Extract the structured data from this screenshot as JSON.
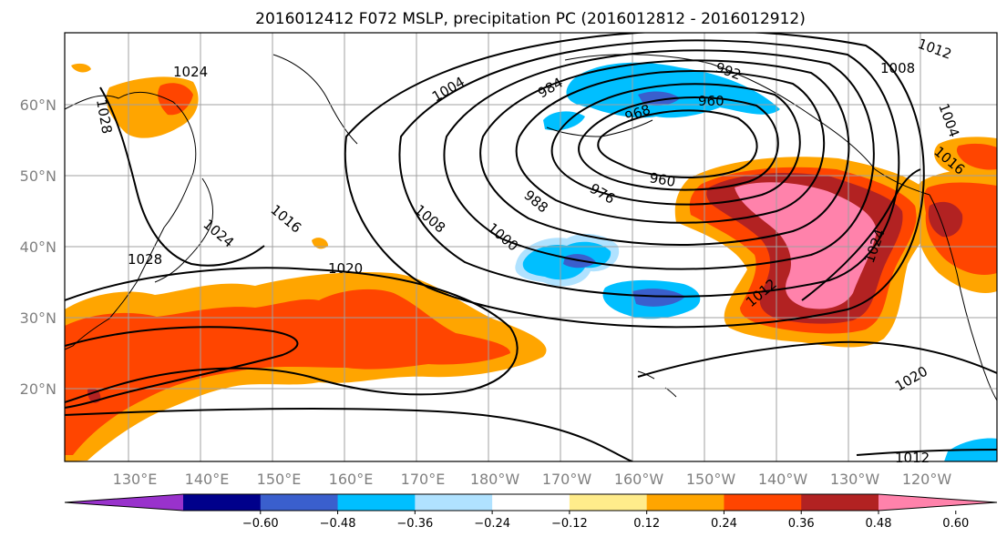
{
  "title": "2016012412 F072 MSLP, precipitation PC (2016012812 - 2016012912)",
  "map": {
    "lat_labels": [
      "60°N",
      "50°N",
      "40°N",
      "30°N",
      "20°N"
    ],
    "lon_labels": [
      "130°E",
      "140°E",
      "150°E",
      "160°E",
      "170°E",
      "180°W",
      "170°W",
      "160°W",
      "150°W",
      "140°W",
      "130°W",
      "120°W"
    ],
    "gridlines": true
  },
  "isobars": {
    "units": "hPa",
    "labels": [
      "1024",
      "1028",
      "1004",
      "984",
      "992",
      "1012",
      "1008",
      "1004",
      "968",
      "960",
      "960",
      "1016",
      "976",
      "988",
      "1016",
      "1008",
      "1024",
      "1000",
      "1028",
      "1020",
      "1012",
      "1024",
      "1020",
      "1012"
    ]
  },
  "colorbar": {
    "ticks": [
      "−0.60",
      "−0.48",
      "−0.36",
      "−0.24",
      "−0.12",
      "0.12",
      "0.24",
      "0.36",
      "0.48",
      "0.60"
    ],
    "colors": [
      "#9932cc",
      "#00008b",
      "#3a5fcd",
      "#00bfff",
      "#b0e2ff",
      "#ffffff",
      "#ffec8b",
      "#ffa500",
      "#ff4500",
      "#b22222",
      "#ff82ab"
    ],
    "extend": "both"
  }
}
